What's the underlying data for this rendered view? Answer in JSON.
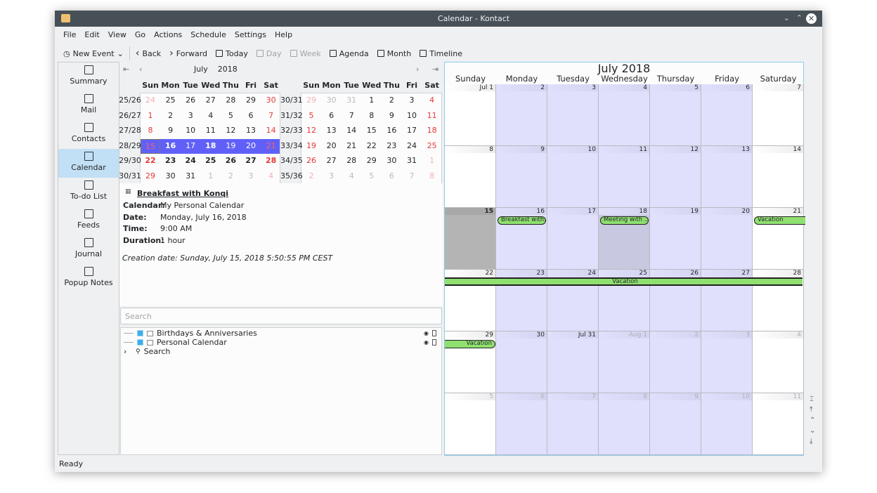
{
  "window": {
    "title": "Calendar - Kontact",
    "buttons": [
      "⌄",
      "⌃",
      "✕"
    ]
  },
  "menu": [
    "File",
    "Edit",
    "View",
    "Go",
    "Actions",
    "Schedule",
    "Settings",
    "Help"
  ],
  "toolbar": [
    {
      "label": "New Event",
      "icon": "clock-icon",
      "disabled": false,
      "dropdown": true
    },
    {
      "label": "Back",
      "icon": "chevron-left-icon",
      "disabled": false
    },
    {
      "label": "Forward",
      "icon": "chevron-right-icon",
      "disabled": false
    },
    {
      "label": "Today",
      "icon": "calendar-today-icon",
      "disabled": false
    },
    {
      "label": "Day",
      "icon": "calendar-day-icon",
      "disabled": true
    },
    {
      "label": "Week",
      "icon": "calendar-week-icon",
      "disabled": true
    },
    {
      "label": "Agenda",
      "icon": "agenda-icon",
      "disabled": false
    },
    {
      "label": "Month",
      "icon": "calendar-month-icon",
      "disabled": false
    },
    {
      "label": "Timeline",
      "icon": "timeline-icon",
      "disabled": false
    }
  ],
  "sidebar": [
    {
      "label": "Summary",
      "icon": "summary-icon"
    },
    {
      "label": "Mail",
      "icon": "mail-icon"
    },
    {
      "label": "Contacts",
      "icon": "contacts-icon"
    },
    {
      "label": "Calendar",
      "icon": "calendar-icon",
      "active": true
    },
    {
      "label": "To-do List",
      "icon": "todo-icon"
    },
    {
      "label": "Feeds",
      "icon": "feeds-icon"
    },
    {
      "label": "Journal",
      "icon": "journal-icon"
    },
    {
      "label": "Popup Notes",
      "icon": "popup-notes-icon"
    }
  ],
  "mini_calendars": [
    {
      "month": "July",
      "year": "2018",
      "weekdays": [
        "Sun",
        "Mon",
        "Tue",
        "Wed",
        "Thu",
        "Fri",
        "Sat"
      ],
      "weeks": [
        "25/26",
        "26/27",
        "27/28",
        "28/29",
        "29/30",
        "30/31"
      ],
      "days": [
        [
          24,
          25,
          26,
          27,
          28,
          29,
          30
        ],
        [
          1,
          2,
          3,
          4,
          5,
          6,
          7
        ],
        [
          8,
          9,
          10,
          11,
          12,
          13,
          14
        ],
        [
          15,
          16,
          17,
          18,
          19,
          20,
          21
        ],
        [
          22,
          23,
          24,
          25,
          26,
          27,
          28
        ],
        [
          29,
          30,
          31,
          1,
          2,
          3,
          4
        ]
      ],
      "first_in_month": [
        0,
        1
      ],
      "last_in_month": [
        5,
        2
      ],
      "selected_row": 3,
      "today": [
        3,
        0
      ],
      "bold_rows": [
        3,
        4
      ]
    },
    {
      "month": "August",
      "year": "2018",
      "weekdays": [
        "Sun",
        "Mon",
        "Tue",
        "Wed",
        "Thu",
        "Fri",
        "Sat"
      ],
      "weeks": [
        "30/31",
        "31/32",
        "32/33",
        "33/34",
        "34/35",
        "35/36"
      ],
      "days": [
        [
          29,
          30,
          31,
          1,
          2,
          3,
          4
        ],
        [
          5,
          6,
          7,
          8,
          9,
          10,
          11
        ],
        [
          12,
          13,
          14,
          15,
          16,
          17,
          18
        ],
        [
          19,
          20,
          21,
          22,
          23,
          24,
          25
        ],
        [
          26,
          27,
          28,
          29,
          30,
          31,
          1
        ],
        [
          2,
          3,
          4,
          5,
          6,
          7,
          8
        ]
      ],
      "first_in_month": [
        0,
        3
      ],
      "last_in_month": [
        4,
        5
      ]
    }
  ],
  "event_details": {
    "title": "Breakfast with Konqi",
    "fields": [
      [
        "Calendar:",
        "My Personal Calendar"
      ],
      [
        "Date:",
        "Monday, July 16, 2018"
      ],
      [
        "Time:",
        "9:00 AM"
      ],
      [
        "Duration:",
        "1 hour"
      ]
    ],
    "creation": "Creation date: Sunday, July 15, 2018 5:50:55 PM CEST"
  },
  "search": {
    "placeholder": "Search"
  },
  "calendars": [
    {
      "label": "Birthdays & Anniversaries",
      "checked": true
    },
    {
      "label": "Personal Calendar",
      "checked": true
    },
    {
      "label": "Search",
      "collapsed": true
    }
  ],
  "month_view": {
    "title": "July 2018",
    "day_names": [
      "Sunday",
      "Monday",
      "Tuesday",
      "Wednesday",
      "Thursday",
      "Friday",
      "Saturday"
    ],
    "labels": [
      "Jul 1",
      "2",
      "3",
      "4",
      "5",
      "6",
      "7",
      "8",
      "9",
      "10",
      "11",
      "12",
      "13",
      "14",
      "15",
      "16",
      "17",
      "18",
      "19",
      "20",
      "21",
      "22",
      "23",
      "24",
      "25",
      "26",
      "27",
      "28",
      "29",
      "30",
      "Jul 31",
      "Aug 1",
      "2",
      "3",
      "4",
      "5",
      "6",
      "7",
      "8",
      "9",
      "10",
      "11"
    ],
    "today_index": 14,
    "selected_index": 17,
    "first_out_index": 31,
    "events": [
      {
        "label": "Breakfast with...",
        "start_index": 15,
        "days": 1
      },
      {
        "label": "Meeting with ....",
        "start_index": 17,
        "days": 1
      },
      {
        "label": "Vacation",
        "start_index": 20,
        "days": 1,
        "continues": true
      },
      {
        "label": "Vacation",
        "start_index": 21,
        "days": 7,
        "center": true,
        "continues": true
      },
      {
        "label": "Vacation",
        "start_index": 28,
        "days": 1,
        "right": true
      }
    ],
    "colors": {
      "weekday": "#e0e0fc",
      "weekend": "#ffffff",
      "today": "#b4b4b4",
      "selected": "#c8c8e0",
      "event": "#8fe070",
      "weekend_red": "#e83838"
    }
  },
  "status": "Ready"
}
